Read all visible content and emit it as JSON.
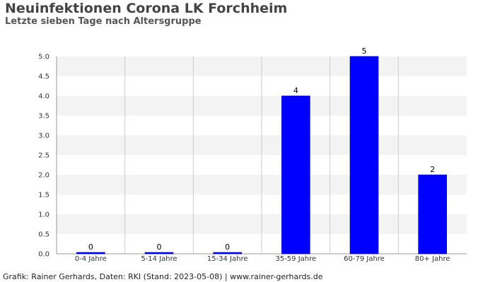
{
  "chart_data": {
    "type": "bar",
    "title": "Neuinfektionen Corona LK Forchheim",
    "subtitle": "Letzte sieben Tage nach Altersgruppe",
    "categories": [
      "0-4 Jahre",
      "5-14 Jahre",
      "15-34 Jahre",
      "35-59 Jahre",
      "60-79 Jahre",
      "80+ Jahre"
    ],
    "values": [
      0,
      0,
      0,
      4,
      5,
      2
    ],
    "data_labels": [
      "0",
      "0",
      "0",
      "4",
      "5",
      "2"
    ],
    "y_ticks": [
      "0.0",
      "0.5",
      "1.0",
      "1.5",
      "2.0",
      "2.5",
      "3.0",
      "3.5",
      "4.0",
      "4.5",
      "5.0"
    ],
    "ylim": [
      0,
      5
    ],
    "xlabel": "",
    "ylabel": "",
    "grid": true,
    "legend": "none",
    "bar_color": "#0000ff",
    "band_color": "#f3f3f3"
  },
  "footer": "Grafik: Rainer Gerhards, Daten: RKI (Stand: 2023-05-08) | www.rainer-gerhards.de"
}
